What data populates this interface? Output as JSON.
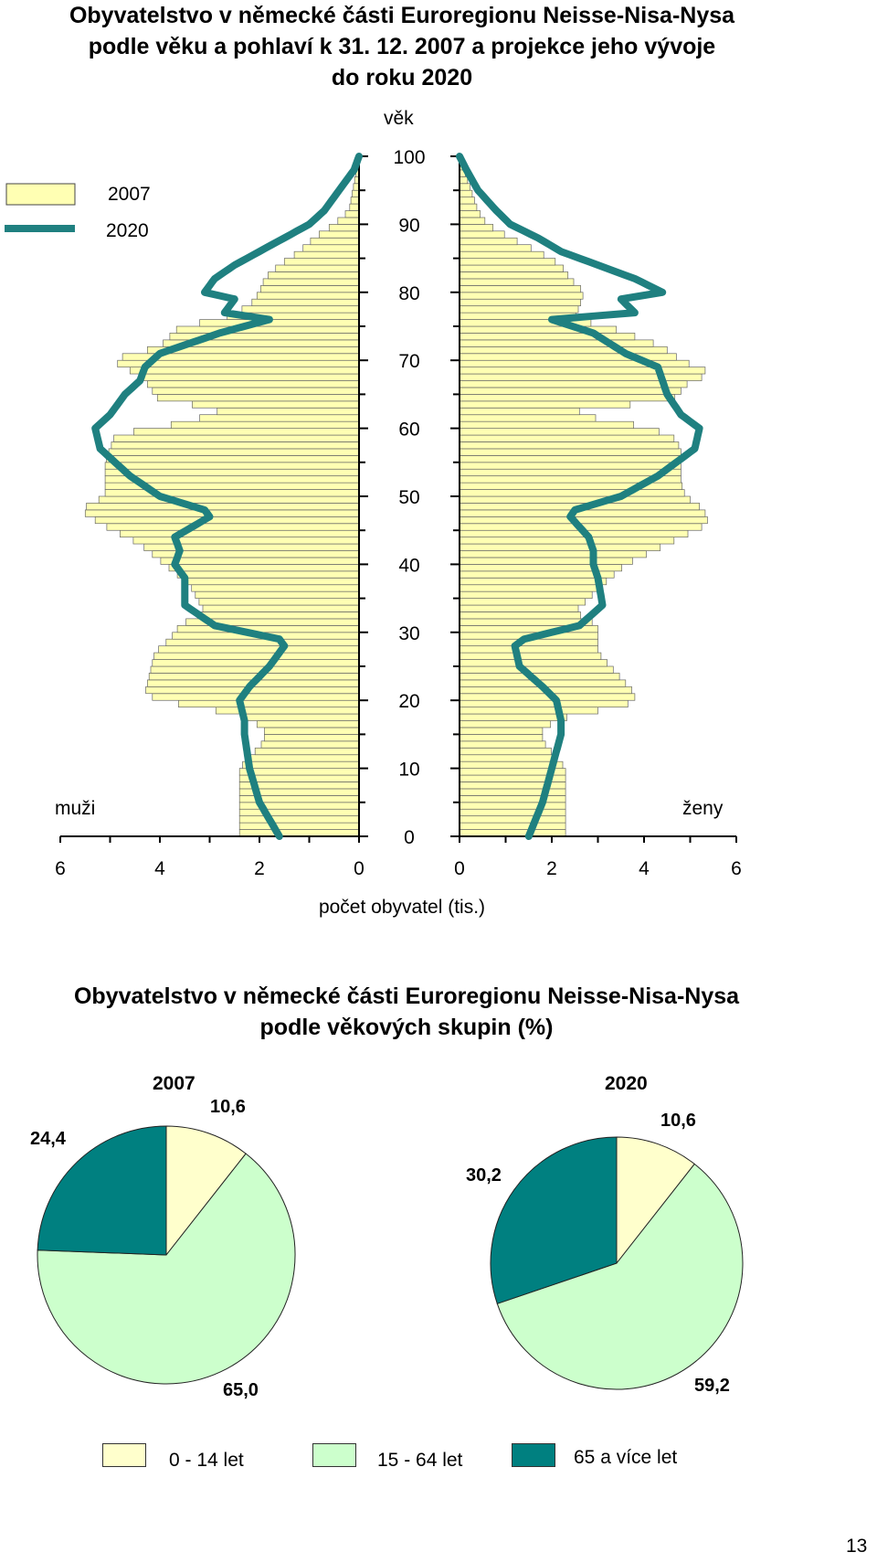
{
  "page_number": "13",
  "chart_data": [
    {
      "type": "bar",
      "subtype": "population-pyramid",
      "title": "Obyvatelstvo v německé části Euroregionu Neisse-Nisa-Nysa podle věku a pohlaví k 31. 12. 2007 a projekce jeho vývoje do roku 2020",
      "title_lines": [
        "Obyvatelstvo v německé části Euroregionu Neisse-Nisa-Nysa",
        "podle věku a pohlaví k 31. 12. 2007 a projekce jeho vývoje",
        "do roku 2020"
      ],
      "age_axis_label": "věk",
      "xlabel": "počet obyvatel (tis.)",
      "men_label": "muži",
      "women_label": "ženy",
      "age_ticks": [
        "0",
        "10",
        "20",
        "30",
        "40",
        "50",
        "60",
        "70",
        "80",
        "90",
        "100"
      ],
      "x_ticks_men": [
        "6",
        "4",
        "2",
        "0"
      ],
      "x_ticks_women": [
        "0",
        "2",
        "4",
        "6"
      ],
      "xlim": [
        0,
        6
      ],
      "ylim": [
        0,
        100
      ],
      "legend": {
        "position": "top-left",
        "bar_label": "2007",
        "line_label": "2020"
      },
      "colors": {
        "bar_fill": "#ffffb3",
        "bar_stroke": "#666666",
        "line": "#1f8080"
      },
      "men_2007_keypoints": {
        "ages": [
          0,
          7,
          10,
          14,
          16,
          18,
          20,
          21,
          24,
          27,
          29,
          31,
          33,
          37,
          40,
          43,
          46,
          48,
          50,
          52,
          55,
          57,
          59,
          61,
          62,
          63,
          64,
          67,
          69,
          70,
          72,
          75,
          76,
          78,
          80,
          82,
          84,
          86,
          88,
          90,
          92,
          94,
          96,
          98,
          100
        ],
        "values": [
          2.4,
          2.4,
          2.4,
          1.9,
          1.9,
          2.5,
          4.0,
          4.3,
          4.2,
          4.1,
          3.8,
          3.6,
          3.1,
          3.4,
          3.9,
          4.4,
          5.2,
          5.6,
          5.1,
          5.1,
          5.1,
          5.0,
          4.9,
          3.4,
          3.0,
          2.7,
          4.0,
          4.3,
          4.7,
          5.0,
          4.0,
          3.6,
          2.8,
          2.2,
          2.0,
          1.9,
          1.6,
          1.2,
          0.9,
          0.5,
          0.2,
          0.15,
          0.1,
          0.05,
          0.0
        ]
      },
      "women_2007_keypoints": {
        "ages": [
          0,
          7,
          10,
          14,
          16,
          18,
          19,
          20,
          21,
          24,
          27,
          29,
          31,
          33,
          37,
          40,
          43,
          46,
          48,
          50,
          52,
          55,
          57,
          59,
          61,
          62,
          63,
          64,
          67,
          68,
          70,
          72,
          75,
          76,
          78,
          80,
          82,
          84,
          86,
          88,
          90,
          92,
          94,
          96,
          98,
          100
        ],
        "values": [
          2.3,
          2.3,
          2.3,
          1.8,
          1.8,
          2.5,
          3.5,
          3.8,
          3.8,
          3.4,
          3.0,
          3.0,
          3.0,
          2.5,
          3.1,
          3.6,
          4.5,
          5.4,
          5.3,
          4.9,
          4.8,
          4.8,
          4.8,
          4.6,
          3.5,
          2.4,
          2.8,
          4.6,
          5.0,
          5.5,
          4.8,
          4.4,
          3.2,
          2.5,
          2.6,
          2.7,
          2.4,
          2.2,
          1.7,
          1.1,
          0.6,
          0.4,
          0.3,
          0.2,
          0.1,
          0.0
        ]
      },
      "men_2020_keypoints": {
        "ages": [
          0,
          5,
          10,
          15,
          17,
          20,
          22,
          25,
          28,
          29,
          31,
          34,
          38,
          40,
          42,
          44,
          47,
          48,
          50,
          53,
          57,
          60,
          62,
          65,
          67,
          69,
          71,
          74,
          76,
          77,
          79,
          80,
          82,
          84,
          86,
          88,
          90,
          92,
          95,
          98,
          100
        ],
        "values": [
          1.6,
          2.0,
          2.2,
          2.3,
          2.3,
          2.4,
          2.2,
          1.8,
          1.5,
          1.6,
          2.9,
          3.5,
          3.5,
          3.7,
          3.6,
          3.7,
          3.0,
          3.1,
          4.0,
          4.6,
          5.2,
          5.3,
          5.0,
          4.7,
          4.4,
          4.3,
          4.0,
          2.8,
          1.8,
          2.7,
          2.5,
          3.1,
          2.9,
          2.5,
          2.0,
          1.5,
          1.0,
          0.7,
          0.4,
          0.1,
          0.0
        ]
      },
      "women_2020_keypoints": {
        "ages": [
          0,
          5,
          10,
          15,
          17,
          20,
          22,
          25,
          28,
          29,
          31,
          34,
          38,
          40,
          42,
          44,
          47,
          48,
          50,
          53,
          57,
          60,
          62,
          65,
          67,
          69,
          71,
          74,
          76,
          77,
          79,
          80,
          82,
          84,
          86,
          88,
          90,
          92,
          95,
          98,
          100
        ],
        "values": [
          1.5,
          1.8,
          2.0,
          2.2,
          2.2,
          2.1,
          1.8,
          1.3,
          1.2,
          1.4,
          2.6,
          3.1,
          3.0,
          2.9,
          2.9,
          2.8,
          2.4,
          2.5,
          3.5,
          4.3,
          5.1,
          5.2,
          4.8,
          4.5,
          4.4,
          4.3,
          3.6,
          2.9,
          2.0,
          3.8,
          3.5,
          4.4,
          3.8,
          3.0,
          2.2,
          1.7,
          1.1,
          0.8,
          0.4,
          0.15,
          0.0
        ]
      }
    },
    {
      "type": "pie",
      "title_lines": [
        "Obyvatelstvo v německé části Euroregionu Neisse-Nisa-Nysa",
        "podle věkových skupin (%)"
      ],
      "categories": [
        "0 - 14 let",
        "15 - 64 let",
        "65 a více let"
      ],
      "colors": [
        "#ffffcc",
        "#ccffcc",
        "#008080"
      ],
      "legend": {
        "position": "bottom"
      },
      "pies": [
        {
          "name": "2007",
          "values": [
            10.6,
            65.0,
            24.4
          ],
          "labels": [
            "10,6",
            "65,0",
            "24,4"
          ]
        },
        {
          "name": "2020",
          "values": [
            10.6,
            59.2,
            30.2
          ],
          "labels": [
            "10,6",
            "59,2",
            "30,2"
          ]
        }
      ]
    }
  ]
}
